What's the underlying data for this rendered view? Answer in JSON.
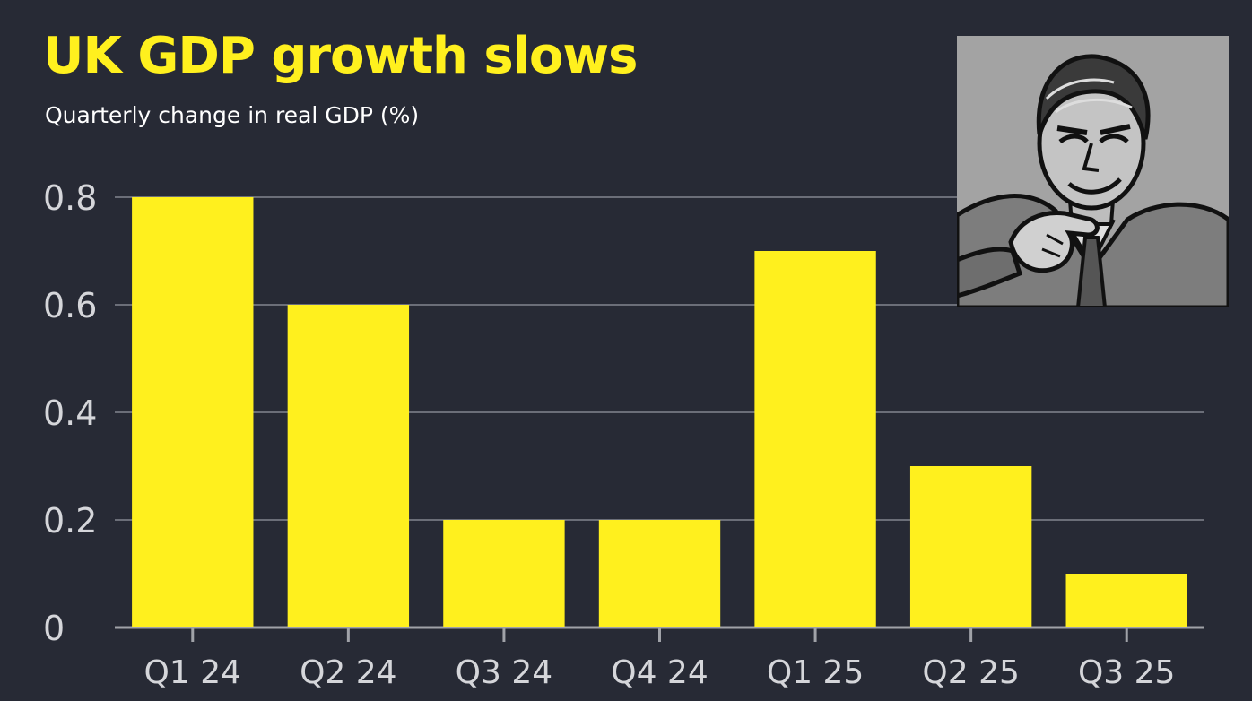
{
  "header": {
    "title": "UK GDP growth slows",
    "subtitle": "Quarterly change in real GDP (%)"
  },
  "colors": {
    "background": "#272a35",
    "bar": "#fff01e",
    "grid": "#6b6e78",
    "tick_text": "#d5d6da",
    "title": "#fff01e"
  },
  "photo": {
    "description_icon": "man-pointing-portrait-icon"
  },
  "chart_data": {
    "type": "bar",
    "categories": [
      "Q1 24",
      "Q2 24",
      "Q3 24",
      "Q4 24",
      "Q1 25",
      "Q2 25",
      "Q3 25"
    ],
    "values": [
      0.8,
      0.6,
      0.2,
      0.2,
      0.7,
      0.3,
      0.1
    ],
    "title": "UK GDP growth slows",
    "subtitle": "Quarterly change in real GDP (%)",
    "xlabel": "",
    "ylabel": "",
    "ylim": [
      0,
      0.8
    ],
    "yticks": [
      0,
      0.2,
      0.4,
      0.6,
      0.8
    ],
    "ytick_labels": [
      "0",
      "0.2",
      "0.4",
      "0.6",
      "0.8"
    ],
    "grid": true,
    "legend": "none"
  }
}
